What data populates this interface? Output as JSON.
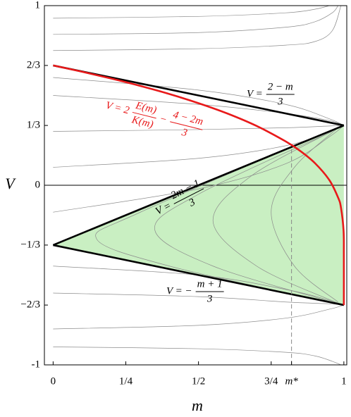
{
  "chart_data": {
    "type": "line",
    "x_label": "m",
    "y_label": "V",
    "xlim": [
      -0.03,
      1.01
    ],
    "ylim": [
      -1,
      1
    ],
    "xticks": [
      0,
      {
        "value": 0.25,
        "label": "1/4"
      },
      {
        "value": 0.5,
        "label": "1/2"
      },
      {
        "value": 0.75,
        "label": "3/4"
      },
      {
        "value": 0.82,
        "label": "m*"
      },
      1
    ],
    "yticks": [
      -1,
      {
        "value": -0.667,
        "label": "−2/3"
      },
      {
        "value": -0.333,
        "label": "−1/3"
      },
      0,
      {
        "value": 0.333,
        "label": "1/3"
      },
      {
        "value": 0.667,
        "label": "2/3"
      },
      1
    ],
    "zero_line": true,
    "shaded": {
      "color": "#c9efc2",
      "x": [
        0,
        1,
        1
      ],
      "values": [
        -0.333,
        0.333,
        -0.667
      ]
    },
    "series": [
      {
        "color": "#8c8c8c",
        "x": [
          0,
          0.5,
          0.8,
          0.9,
          0.95
        ],
        "values": [
          0.93,
          0.94,
          0.96,
          0.98,
          1.0
        ]
      },
      {
        "color": "#8c8c8c",
        "x": [
          0,
          0.5,
          0.8,
          0.9,
          0.96,
          0.98
        ],
        "values": [
          0.84,
          0.85,
          0.88,
          0.91,
          0.96,
          1.0
        ]
      },
      {
        "color": "#8c8c8c",
        "x": [
          0,
          0.5,
          0.8,
          0.9,
          0.96,
          0.99
        ],
        "values": [
          0.75,
          0.76,
          0.78,
          0.8,
          0.86,
          1.0
        ]
      },
      {
        "color": "#8c8c8c",
        "x": [
          0,
          0.5,
          0.8,
          0.95,
          1
        ],
        "values": [
          0.6,
          0.53,
          0.45,
          0.37,
          0.333
        ]
      },
      {
        "color": "#8c8c8c",
        "x": [
          0,
          0.5,
          0.8,
          0.95,
          1
        ],
        "values": [
          0.5,
          0.45,
          0.4,
          0.36,
          0.333
        ]
      },
      {
        "color": "#8c8c8c",
        "x": [
          0,
          0.5,
          0.8,
          0.95,
          1
        ],
        "values": [
          0.3,
          0.31,
          0.32,
          0.33,
          0.333
        ]
      },
      {
        "color": "#8c8c8c",
        "x": [
          0,
          0.5,
          0.8,
          0.95,
          1
        ],
        "values": [
          0.1,
          0.15,
          0.22,
          0.3,
          0.333
        ]
      },
      {
        "color": "#8c8c8c",
        "x": [
          0,
          0.5,
          0.8,
          0.95,
          1
        ],
        "values": [
          -0.15,
          -0.02,
          0.12,
          0.27,
          0.333
        ]
      },
      {
        "color": "#8c8c8c",
        "x": [
          0.95,
          0.4,
          0.15,
          0.3,
          0.95
        ],
        "values": [
          -0.65,
          -0.45,
          -0.3,
          -0.15,
          0.3
        ]
      },
      {
        "color": "#8c8c8c",
        "x": [
          0.96,
          0.55,
          0.35,
          0.5,
          0.96
        ],
        "values": [
          -0.65,
          -0.45,
          -0.25,
          -0.05,
          0.3
        ]
      },
      {
        "color": "#8c8c8c",
        "x": [
          0.97,
          0.7,
          0.55,
          0.68,
          0.97
        ],
        "values": [
          -0.65,
          -0.45,
          -0.2,
          0.05,
          0.31
        ]
      },
      {
        "color": "#8c8c8c",
        "x": [
          0.98,
          0.83,
          0.75,
          0.83,
          0.98
        ],
        "values": [
          -0.65,
          -0.45,
          -0.15,
          0.1,
          0.32
        ]
      },
      {
        "color": "#8c8c8c",
        "x": [
          0,
          0.5,
          0.8,
          0.95,
          1
        ],
        "values": [
          -0.45,
          -0.5,
          -0.58,
          -0.64,
          -0.667
        ]
      },
      {
        "color": "#8c8c8c",
        "x": [
          0,
          0.5,
          0.8,
          0.95,
          1
        ],
        "values": [
          -0.6,
          -0.62,
          -0.65,
          -0.66,
          -0.667
        ]
      },
      {
        "color": "#8c8c8c",
        "x": [
          0,
          0.5,
          0.8,
          0.95,
          1
        ],
        "values": [
          -0.8,
          -0.78,
          -0.74,
          -0.69,
          -0.667
        ]
      },
      {
        "color": "#8c8c8c",
        "x": [
          0,
          0.5,
          0.8,
          0.9,
          0.96,
          0.99
        ],
        "values": [
          -0.9,
          -0.91,
          -0.93,
          -0.95,
          -0.98,
          -1.0
        ]
      },
      {
        "color": "#000000",
        "x": [
          0,
          1
        ],
        "values": [
          0.667,
          0.333
        ]
      },
      {
        "color": "#000000",
        "x": [
          0,
          1
        ],
        "values": [
          -0.333,
          0.333
        ]
      },
      {
        "color": "#000000",
        "x": [
          0,
          1
        ],
        "values": [
          -0.333,
          -0.667
        ]
      },
      {
        "color": "#888888",
        "dashed": true,
        "x": [
          0.82,
          0.82
        ],
        "values": [
          -1,
          0.213
        ]
      },
      {
        "color": "#e8191a",
        "x": [
          0,
          0.1,
          0.2,
          0.3,
          0.4,
          0.5,
          0.6,
          0.7,
          0.8,
          0.85,
          0.9,
          0.95,
          0.98,
          0.99,
          0.999,
          0.99999,
          1
        ],
        "values": [
          0.667,
          0.632,
          0.594,
          0.553,
          0.508,
          0.457,
          0.399,
          0.33,
          0.244,
          0.191,
          0.124,
          0.029,
          -0.068,
          -0.124,
          -0.253,
          -0.387,
          -0.667
        ]
      }
    ],
    "annotations": [
      {
        "lhs": "V =",
        "num": "2 − m",
        "den": "3",
        "color": "#000000"
      },
      {
        "lhs": "V =",
        "num": "2m − 1",
        "den": "3",
        "color": "#000000"
      },
      {
        "lhs": "V = −",
        "num": "m + 1",
        "den": "3",
        "color": "#000000"
      },
      {
        "lhs": "V = 2",
        "num": "E(m)",
        "den": "K(m)",
        "op": "−",
        "num2": "4 − 2m",
        "den2": "3",
        "color": "#e8191a"
      }
    ]
  }
}
